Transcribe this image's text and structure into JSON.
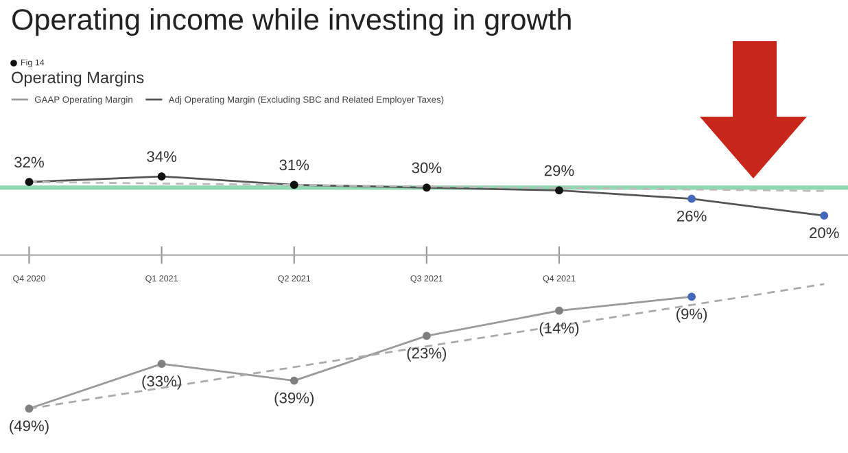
{
  "chart_data": {
    "type": "line",
    "title": "Operating income while investing in growth",
    "subtitle": "Operating Margins",
    "annotations": [
      "Fig 14"
    ],
    "categories": [
      "Q4 2020",
      "Q1 2021",
      "Q2 2021",
      "Q3 2021",
      "Q4 2021",
      null,
      null
    ],
    "tick_labels": "x",
    "grid": false,
    "legend": "top left",
    "marker": "circle",
    "line_style": "solid",
    "ref_lines": [
      {
        "axis": "y",
        "value": 30,
        "color": "#8fd8b0"
      }
    ],
    "series": [
      {
        "name": "GAAP Operating Margin",
        "color": "#9a9a9a",
        "values": [
          -49,
          -33,
          -39,
          -23,
          -14,
          -9,
          null
        ],
        "colors": [
          "#808080",
          "#808080",
          "#808080",
          "#808080",
          "#808080",
          "#4466bb",
          null
        ],
        "value_labels": [
          "(49%)",
          "(33%)",
          "(39%)",
          "(23%)",
          "(14%)",
          "(9%)",
          null
        ]
      },
      {
        "name": "Adj Operating Margin (Excluding SBC and Related Employer Taxes)",
        "color": "#555555",
        "values": [
          32,
          34,
          31,
          30,
          29,
          26,
          20
        ],
        "colors": [
          "#111111",
          "#111111",
          "#111111",
          "#111111",
          "#111111",
          "#4466bb",
          "#4466bb"
        ],
        "value_labels": [
          "32%",
          "34%",
          "31%",
          "30%",
          "29%",
          "26%",
          "20%"
        ]
      },
      {
        "color": "#aaaaaa",
        "values": [
          -49,
          null,
          null,
          null,
          null,
          null,
          -4.5
        ],
        "line_style": "dashed",
        "marker": "none"
      },
      {
        "color": "#bbbbbb",
        "values": [
          32,
          null,
          null,
          null,
          null,
          null,
          28.8
        ],
        "line_style": "dashed",
        "marker": "none"
      }
    ]
  }
}
